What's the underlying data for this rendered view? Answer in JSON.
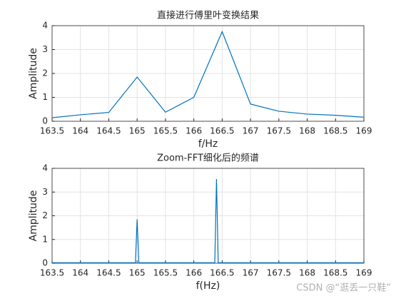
{
  "chart_data": [
    {
      "type": "line",
      "title": "直接进行傅里叶变换结果",
      "xlabel": "f/Hz",
      "ylabel": "Amplitude",
      "x": [
        163.5,
        164,
        164.5,
        165,
        165.5,
        166,
        166.5,
        167,
        167.5,
        168,
        168.5,
        169
      ],
      "values": [
        0.15,
        0.27,
        0.37,
        1.85,
        0.38,
        1.0,
        3.75,
        0.72,
        0.42,
        0.3,
        0.25,
        0.17
      ],
      "color": "#0072bd",
      "grid": true,
      "xlim": [
        163.5,
        169
      ],
      "xticks": [
        163.5,
        164,
        164.5,
        165,
        165.5,
        166,
        166.5,
        167,
        167.5,
        168,
        168.5,
        169
      ],
      "ylim": [
        0,
        4
      ],
      "yticks": [
        0,
        1,
        2,
        3,
        4
      ]
    },
    {
      "type": "line",
      "title": "Zoom-FFT细化后的频谱",
      "xlabel": "f(Hz)",
      "ylabel": "Amplitude",
      "x": [
        163.5,
        164.97,
        165.0,
        165.03,
        166.37,
        166.4,
        166.43,
        169
      ],
      "values": [
        0.02,
        0.02,
        1.85,
        0.02,
        0.02,
        3.55,
        0.02,
        0.02
      ],
      "color": "#0072bd",
      "grid": true,
      "xlim": [
        163.5,
        169
      ],
      "xticks": [
        163.5,
        164,
        164.5,
        165,
        165.5,
        166,
        166.5,
        167,
        167.5,
        168,
        168.5,
        169
      ],
      "ylim": [
        0,
        4
      ],
      "yticks": [
        0,
        1,
        2,
        3,
        4
      ]
    }
  ],
  "watermark": "CSDN @“逛丢一只鞋”"
}
